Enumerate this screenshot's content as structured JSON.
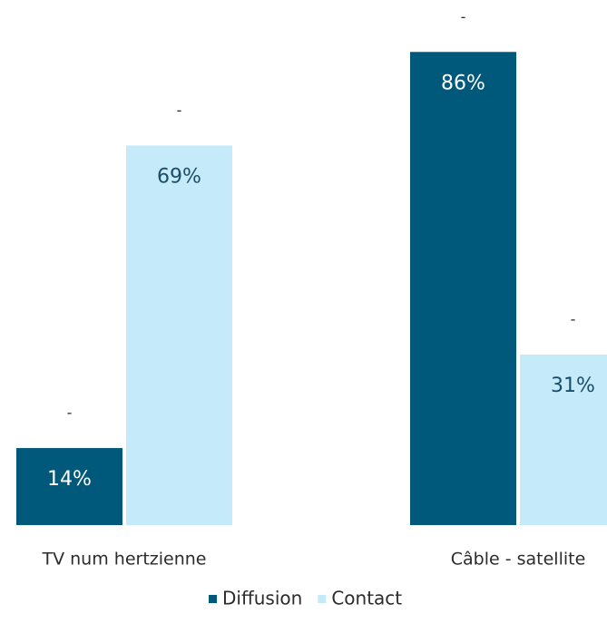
{
  "chart_data": {
    "type": "bar",
    "categories": [
      "TV num hertzienne",
      "Câble - satellite"
    ],
    "series": [
      {
        "name": "Diffusion",
        "color": "#00587a",
        "values": [
          14,
          86
        ],
        "value_labels": [
          "14%",
          "86%"
        ],
        "top_labels": [
          "-",
          "-"
        ]
      },
      {
        "name": "Contact",
        "color": "#c5ebfa",
        "values": [
          69,
          31
        ],
        "value_labels": [
          "69%",
          "31%"
        ],
        "top_labels": [
          "-",
          "-"
        ]
      }
    ],
    "ylim": [
      0,
      90
    ],
    "grid": false,
    "legend": "bottom"
  }
}
